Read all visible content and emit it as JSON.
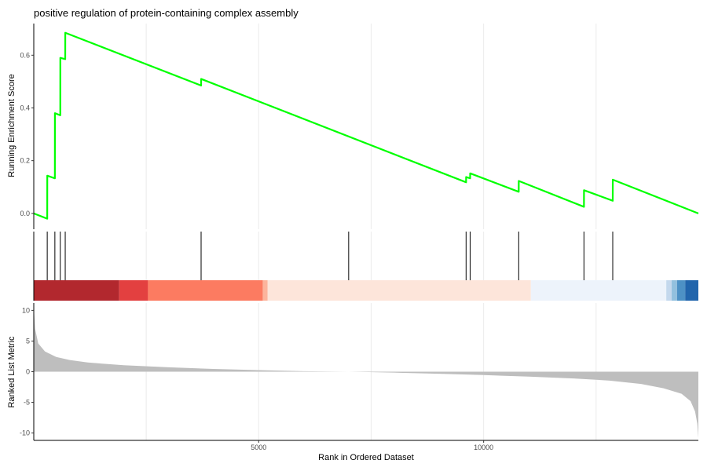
{
  "chart_data": {
    "type": "gsea_enrichment",
    "title": "positive regulation of protein-containing complex assembly",
    "x_range": [
      1,
      14773
    ],
    "x_ticks": [
      5000,
      10000
    ],
    "xlabel": "Rank in Ordered Dataset",
    "grid": true,
    "colors": {
      "running_score": "#00ff00",
      "hit_lines": "#000000",
      "metric_fill": "#bebebe",
      "grid": "#ebebeb",
      "axis": "#000000"
    },
    "running_score": {
      "ylabel": "Running Enrichment Score",
      "ylim": [
        -0.06,
        0.72
      ],
      "y_ticks": [
        0.0,
        0.2,
        0.4,
        0.6
      ],
      "y_tick_labels": [
        "0.0",
        "0.2",
        "0.4",
        "0.6"
      ],
      "points": [
        [
          1,
          0.0
        ],
        [
          300,
          -0.02
        ],
        [
          301,
          0.143
        ],
        [
          470,
          0.133
        ],
        [
          471,
          0.38
        ],
        [
          590,
          0.372
        ],
        [
          591,
          0.59
        ],
        [
          700,
          0.585
        ],
        [
          701,
          0.685
        ],
        [
          3720,
          0.485
        ],
        [
          3721,
          0.51
        ],
        [
          9610,
          0.118
        ],
        [
          9611,
          0.138
        ],
        [
          9700,
          0.133
        ],
        [
          9701,
          0.152
        ],
        [
          10780,
          0.082
        ],
        [
          10781,
          0.123
        ],
        [
          12230,
          0.025
        ],
        [
          12231,
          0.088
        ],
        [
          12870,
          0.048
        ],
        [
          12871,
          0.128
        ],
        [
          14773,
          0.0
        ]
      ]
    },
    "hit_ranks": [
      300,
      470,
      590,
      700,
      3720,
      7000,
      9610,
      9700,
      10780,
      12230,
      12870
    ],
    "rank_color_bands": [
      {
        "start": 1,
        "end": 1900,
        "color": "#b2282e"
      },
      {
        "start": 1900,
        "end": 2540,
        "color": "#e34040"
      },
      {
        "start": 2540,
        "end": 5090,
        "color": "#fc7b61"
      },
      {
        "start": 5090,
        "end": 5200,
        "color": "#fcb49c"
      },
      {
        "start": 5200,
        "end": 11050,
        "color": "#fde5da"
      },
      {
        "start": 11050,
        "end": 14060,
        "color": "#edf3fb"
      },
      {
        "start": 14060,
        "end": 14180,
        "color": "#c4d8ed"
      },
      {
        "start": 14180,
        "end": 14300,
        "color": "#92c0de"
      },
      {
        "start": 14300,
        "end": 14480,
        "color": "#4d91c5"
      },
      {
        "start": 14480,
        "end": 14773,
        "color": "#2165ac"
      }
    ],
    "ranked_metric": {
      "ylabel": "Ranked List Metric",
      "ylim": [
        -11.2,
        11.2
      ],
      "y_ticks": [
        -10,
        -5,
        0,
        5,
        10
      ],
      "y_tick_labels": [
        "-10",
        "-5",
        "0",
        "5",
        "10"
      ],
      "curve": [
        [
          1,
          10.5
        ],
        [
          30,
          7.0
        ],
        [
          100,
          4.6
        ],
        [
          250,
          3.3
        ],
        [
          500,
          2.4
        ],
        [
          800,
          1.9
        ],
        [
          1200,
          1.5
        ],
        [
          2000,
          1.05
        ],
        [
          3000,
          0.72
        ],
        [
          4000,
          0.45
        ],
        [
          5000,
          0.25
        ],
        [
          6000,
          0.08
        ],
        [
          7000,
          0.0
        ],
        [
          8000,
          -0.15
        ],
        [
          9000,
          -0.33
        ],
        [
          10000,
          -0.55
        ],
        [
          11000,
          -0.8
        ],
        [
          12000,
          -1.1
        ],
        [
          12800,
          -1.45
        ],
        [
          13500,
          -2.0
        ],
        [
          14000,
          -2.7
        ],
        [
          14400,
          -3.6
        ],
        [
          14600,
          -4.8
        ],
        [
          14700,
          -6.5
        ],
        [
          14750,
          -8.5
        ],
        [
          14773,
          -10.8
        ]
      ]
    }
  }
}
